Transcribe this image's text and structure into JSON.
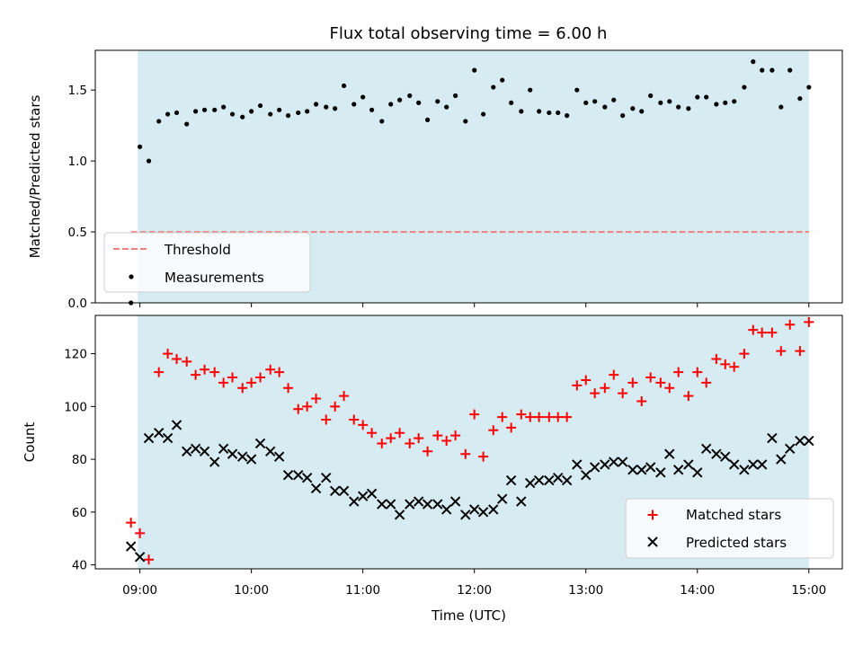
{
  "chart_data": [
    {
      "type": "scatter",
      "title": "Flux total observing time = 6.00 h",
      "xlabel": "",
      "ylabel": "Matched/Predicted stars",
      "xlim": [
        8.6,
        15.3
      ],
      "ylim": [
        0.0,
        1.78
      ],
      "yticks": [
        0.0,
        0.5,
        1.0,
        1.5
      ],
      "ytick_labels": [
        "0.0",
        "0.5",
        "1.0",
        "1.5"
      ],
      "shaded_span": [
        8.98,
        15.0
      ],
      "threshold": {
        "name": "Threshold",
        "value": 0.5,
        "x_range": [
          8.92,
          15.0
        ],
        "color": "#f08080"
      },
      "series": [
        {
          "name": "Measurements",
          "color": "#000000",
          "x": [
            8.92,
            9.0,
            9.08,
            9.17,
            9.25,
            9.33,
            9.42,
            9.5,
            9.58,
            9.67,
            9.75,
            9.83,
            9.92,
            10.0,
            10.08,
            10.17,
            10.25,
            10.33,
            10.42,
            10.5,
            10.58,
            10.67,
            10.75,
            10.83,
            10.92,
            11.0,
            11.08,
            11.17,
            11.25,
            11.33,
            11.42,
            11.5,
            11.58,
            11.67,
            11.75,
            11.83,
            11.92,
            12.0,
            12.08,
            12.17,
            12.25,
            12.33,
            12.42,
            12.5,
            12.58,
            12.67,
            12.75,
            12.83,
            12.92,
            13.0,
            13.08,
            13.17,
            13.25,
            13.33,
            13.42,
            13.5,
            13.58,
            13.67,
            13.75,
            13.83,
            13.92,
            14.0,
            14.08,
            14.17,
            14.25,
            14.33,
            14.42,
            14.5,
            14.58,
            14.67,
            14.75,
            14.83,
            14.92,
            15.0
          ],
          "y": [
            0.0,
            1.1,
            1.0,
            1.28,
            1.33,
            1.34,
            1.26,
            1.35,
            1.36,
            1.36,
            1.38,
            1.33,
            1.31,
            1.35,
            1.39,
            1.33,
            1.36,
            1.32,
            1.34,
            1.35,
            1.4,
            1.38,
            1.37,
            1.53,
            1.4,
            1.45,
            1.36,
            1.28,
            1.4,
            1.43,
            1.46,
            1.41,
            1.29,
            1.42,
            1.38,
            1.46,
            1.28,
            1.64,
            1.33,
            1.52,
            1.57,
            1.41,
            1.35,
            1.5,
            1.35,
            1.34,
            1.34,
            1.32,
            1.5,
            1.41,
            1.42,
            1.38,
            1.43,
            1.32,
            1.37,
            1.35,
            1.46,
            1.41,
            1.42,
            1.38,
            1.37,
            1.45,
            1.45,
            1.4,
            1.41,
            1.42,
            1.52,
            1.7,
            1.64,
            1.64,
            1.38,
            1.64,
            1.44,
            1.52
          ]
        }
      ],
      "legend": {
        "placement": "lower-left",
        "entries": [
          "Threshold",
          "Measurements"
        ]
      }
    },
    {
      "type": "scatter",
      "title": "",
      "xlabel": "Time (UTC)",
      "ylabel": "Count",
      "xlim": [
        8.6,
        15.3
      ],
      "ylim": [
        38.5,
        134.5
      ],
      "xticks": [
        9,
        10,
        11,
        12,
        13,
        14,
        15
      ],
      "xtick_labels": [
        "09:00",
        "10:00",
        "11:00",
        "12:00",
        "13:00",
        "14:00",
        "15:00"
      ],
      "yticks": [
        40,
        60,
        80,
        100,
        120
      ],
      "ytick_labels": [
        "40",
        "60",
        "80",
        "100",
        "120"
      ],
      "shaded_span": [
        8.98,
        15.0
      ],
      "series": [
        {
          "name": "Matched stars",
          "color": "#ff0000",
          "marker": "+",
          "x": [
            8.92,
            9.0,
            9.08,
            9.17,
            9.25,
            9.33,
            9.42,
            9.5,
            9.58,
            9.67,
            9.75,
            9.83,
            9.92,
            10.0,
            10.08,
            10.17,
            10.25,
            10.33,
            10.42,
            10.5,
            10.58,
            10.67,
            10.75,
            10.83,
            10.92,
            11.0,
            11.08,
            11.17,
            11.25,
            11.33,
            11.42,
            11.5,
            11.58,
            11.67,
            11.75,
            11.83,
            11.92,
            12.0,
            12.08,
            12.17,
            12.25,
            12.33,
            12.42,
            12.5,
            12.58,
            12.67,
            12.75,
            12.83,
            12.92,
            13.0,
            13.08,
            13.17,
            13.25,
            13.33,
            13.42,
            13.5,
            13.58,
            13.67,
            13.75,
            13.83,
            13.92,
            14.0,
            14.08,
            14.17,
            14.25,
            14.33,
            14.42,
            14.5,
            14.58,
            14.67,
            14.75,
            14.83,
            14.92,
            15.0
          ],
          "y": [
            56,
            52,
            42,
            113,
            120,
            118,
            117,
            112,
            114,
            113,
            109,
            111,
            107,
            109,
            111,
            114,
            113,
            107,
            99,
            100,
            103,
            95,
            100,
            104,
            95,
            93,
            90,
            86,
            88,
            90,
            86,
            88,
            83,
            89,
            87,
            89,
            82,
            97,
            81,
            91,
            96,
            92,
            97,
            96,
            96,
            96,
            96,
            96,
            108,
            110,
            105,
            107,
            112,
            105,
            109,
            102,
            111,
            109,
            107,
            113,
            104,
            113,
            109,
            118,
            116,
            115,
            120,
            129,
            128,
            128,
            121,
            131,
            121,
            132
          ]
        },
        {
          "name": "Predicted stars",
          "color": "#000000",
          "marker": "x",
          "x": [
            8.92,
            9.0,
            9.08,
            9.17,
            9.25,
            9.33,
            9.42,
            9.5,
            9.58,
            9.67,
            9.75,
            9.83,
            9.92,
            10.0,
            10.08,
            10.17,
            10.25,
            10.33,
            10.42,
            10.5,
            10.58,
            10.67,
            10.75,
            10.83,
            10.92,
            11.0,
            11.08,
            11.17,
            11.25,
            11.33,
            11.42,
            11.5,
            11.58,
            11.67,
            11.75,
            11.83,
            11.92,
            12.0,
            12.08,
            12.17,
            12.25,
            12.33,
            12.42,
            12.5,
            12.58,
            12.67,
            12.75,
            12.83,
            12.92,
            13.0,
            13.08,
            13.17,
            13.25,
            13.33,
            13.42,
            13.5,
            13.58,
            13.67,
            13.75,
            13.83,
            13.92,
            14.0,
            14.08,
            14.17,
            14.25,
            14.33,
            14.42,
            14.5,
            14.58,
            14.67,
            14.75,
            14.83,
            14.92,
            15.0
          ],
          "y": [
            47,
            43,
            88,
            90,
            88,
            93,
            83,
            84,
            83,
            79,
            84,
            82,
            81,
            80,
            86,
            83,
            81,
            74,
            74,
            73,
            69,
            73,
            68,
            68,
            64,
            66,
            67,
            63,
            63,
            59,
            63,
            64,
            63,
            63,
            61,
            64,
            59,
            61,
            60,
            61,
            65,
            72,
            64,
            71,
            72,
            72,
            73,
            72,
            78,
            74,
            77,
            78,
            79,
            79,
            76,
            76,
            77,
            75,
            82,
            76,
            78,
            75,
            84,
            82,
            81,
            78,
            76,
            78,
            78,
            88,
            80,
            84,
            87,
            87
          ]
        }
      ],
      "legend": {
        "placement": "lower-right",
        "entries": [
          "Matched stars",
          "Predicted stars"
        ]
      }
    }
  ]
}
